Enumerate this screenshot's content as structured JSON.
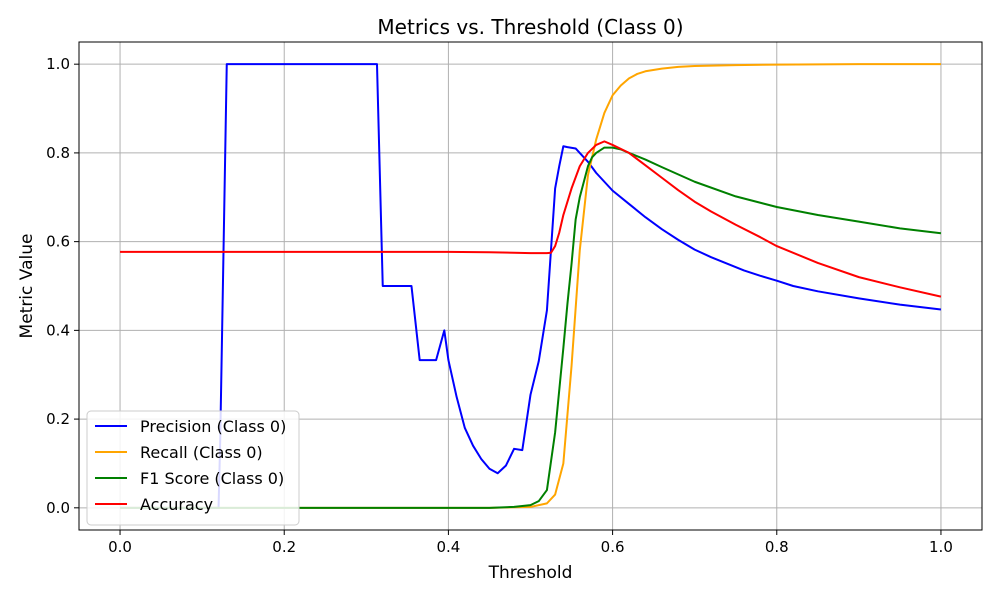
{
  "chart_data": {
    "type": "line",
    "title": "Metrics vs. Threshold (Class 0)",
    "xlabel": "Threshold",
    "ylabel": "Metric Value",
    "xlim": [
      -0.05,
      1.05
    ],
    "ylim": [
      -0.05,
      1.05
    ],
    "xticks": [
      0.0,
      0.2,
      0.4,
      0.6,
      0.8,
      1.0
    ],
    "xtick_labels": [
      "0.0",
      "0.2",
      "0.4",
      "0.6",
      "0.8",
      "1.0"
    ],
    "yticks": [
      0.0,
      0.2,
      0.4,
      0.6,
      0.8,
      1.0
    ],
    "ytick_labels": [
      "0.0",
      "0.2",
      "0.4",
      "0.6",
      "0.8",
      "1.0"
    ],
    "grid": true,
    "legend_position": "lower-left",
    "series": [
      {
        "name": "Precision (Class 0)",
        "color": "#0000ff",
        "x": [
          0.0,
          0.12,
          0.122,
          0.13,
          0.15,
          0.2,
          0.25,
          0.3,
          0.313,
          0.32,
          0.33,
          0.35,
          0.355,
          0.365,
          0.37,
          0.38,
          0.385,
          0.395,
          0.4,
          0.41,
          0.42,
          0.43,
          0.44,
          0.45,
          0.46,
          0.47,
          0.48,
          0.49,
          0.5,
          0.51,
          0.52,
          0.53,
          0.535,
          0.54,
          0.545,
          0.555,
          0.56,
          0.57,
          0.58,
          0.6,
          0.62,
          0.64,
          0.66,
          0.68,
          0.7,
          0.72,
          0.74,
          0.76,
          0.78,
          0.8,
          0.82,
          0.85,
          0.9,
          0.95,
          1.0
        ],
        "y": [
          0.0,
          0.0,
          0.15,
          1.0,
          1.0,
          1.0,
          1.0,
          1.0,
          1.0,
          0.5,
          0.5,
          0.5,
          0.5,
          0.333,
          0.333,
          0.333,
          0.333,
          0.4,
          0.333,
          0.25,
          0.18,
          0.14,
          0.11,
          0.088,
          0.078,
          0.095,
          0.133,
          0.13,
          0.255,
          0.33,
          0.445,
          0.72,
          0.77,
          0.815,
          0.813,
          0.81,
          0.8,
          0.78,
          0.755,
          0.715,
          0.685,
          0.655,
          0.628,
          0.604,
          0.582,
          0.565,
          0.55,
          0.535,
          0.523,
          0.512,
          0.5,
          0.488,
          0.472,
          0.458,
          0.447
        ]
      },
      {
        "name": "Recall (Class 0)",
        "color": "#ffa500",
        "x": [
          0.0,
          0.45,
          0.5,
          0.52,
          0.53,
          0.54,
          0.55,
          0.56,
          0.57,
          0.58,
          0.59,
          0.6,
          0.61,
          0.62,
          0.63,
          0.64,
          0.66,
          0.68,
          0.7,
          0.75,
          0.8,
          0.9,
          1.0
        ],
        "y": [
          0.0,
          0.0,
          0.002,
          0.01,
          0.03,
          0.1,
          0.32,
          0.58,
          0.75,
          0.83,
          0.89,
          0.93,
          0.952,
          0.968,
          0.978,
          0.984,
          0.99,
          0.994,
          0.996,
          0.998,
          0.999,
          1.0,
          1.0
        ]
      },
      {
        "name": "F1 Score (Class 0)",
        "color": "#008000",
        "x": [
          0.0,
          0.45,
          0.48,
          0.5,
          0.51,
          0.52,
          0.53,
          0.54,
          0.545,
          0.55,
          0.555,
          0.56,
          0.57,
          0.575,
          0.58,
          0.59,
          0.6,
          0.61,
          0.62,
          0.64,
          0.66,
          0.7,
          0.75,
          0.8,
          0.85,
          0.9,
          0.95,
          1.0
        ],
        "y": [
          0.0,
          0.0,
          0.002,
          0.006,
          0.015,
          0.04,
          0.17,
          0.36,
          0.46,
          0.55,
          0.65,
          0.7,
          0.77,
          0.79,
          0.8,
          0.812,
          0.812,
          0.808,
          0.8,
          0.785,
          0.768,
          0.735,
          0.702,
          0.678,
          0.66,
          0.645,
          0.63,
          0.619
        ]
      },
      {
        "name": "Accuracy",
        "color": "#ff0000",
        "x": [
          0.0,
          0.1,
          0.2,
          0.3,
          0.4,
          0.45,
          0.48,
          0.5,
          0.51,
          0.52,
          0.525,
          0.53,
          0.535,
          0.54,
          0.55,
          0.56,
          0.57,
          0.58,
          0.59,
          0.6,
          0.62,
          0.64,
          0.66,
          0.68,
          0.7,
          0.72,
          0.75,
          0.78,
          0.8,
          0.85,
          0.9,
          0.95,
          1.0
        ],
        "y": [
          0.577,
          0.577,
          0.577,
          0.577,
          0.577,
          0.576,
          0.575,
          0.574,
          0.574,
          0.574,
          0.575,
          0.59,
          0.62,
          0.66,
          0.72,
          0.77,
          0.8,
          0.818,
          0.826,
          0.818,
          0.8,
          0.772,
          0.744,
          0.716,
          0.69,
          0.668,
          0.638,
          0.61,
          0.59,
          0.552,
          0.52,
          0.497,
          0.476
        ]
      }
    ]
  }
}
